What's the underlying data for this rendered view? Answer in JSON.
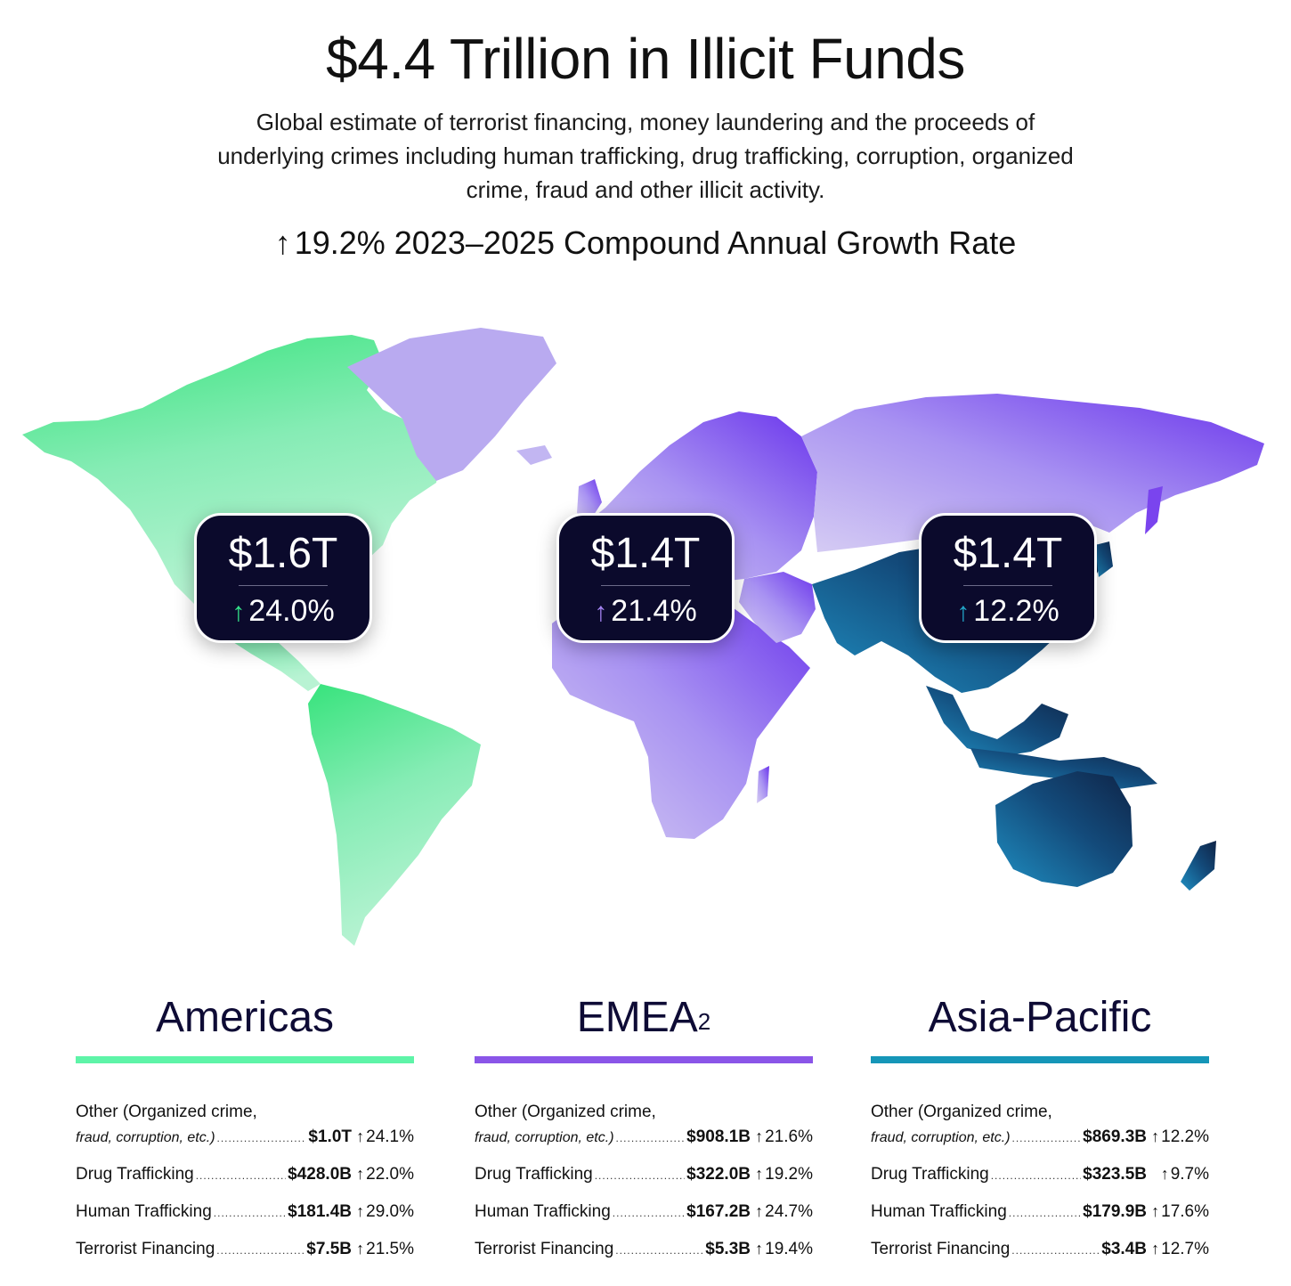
{
  "title": "$4.4 Trillion in Illicit Funds",
  "subtitle": "Global estimate of terrorist financing, money laundering and the proceeds of underlying crimes including human trafficking, drug trafficking, corruption, organized crime, fraud and other illicit activity.",
  "cagr": {
    "arrow": "↑",
    "text": "19.2% 2023–2025 Compound Annual Growth Rate"
  },
  "colors": {
    "americas": "#5ef4a8",
    "emea": "#8a55e8",
    "asia_pacific": "#1596b8",
    "bubble_bg": "#0b0a2c"
  },
  "bubbles": {
    "americas": {
      "value": "$1.6T",
      "arrow": "↑",
      "change": "24.0%",
      "arrow_color": "#34e38a"
    },
    "emea": {
      "value": "$1.4T",
      "arrow": "↑",
      "change": "21.4%",
      "arrow_color": "#a685f5"
    },
    "asia_pacific": {
      "value": "$1.4T",
      "arrow": "↑",
      "change": "12.2%",
      "arrow_color": "#22a6c9"
    }
  },
  "regions": {
    "americas": {
      "name": "Americas",
      "rows": [
        {
          "label": "Other",
          "note": "(Organized crime,",
          "label2": "fraud, corruption, etc.)",
          "amount": "$1.0T",
          "arrow": "↑",
          "pct": "24.1%"
        },
        {
          "label": "Drug Trafficking",
          "amount": "$428.0B",
          "arrow": "↑",
          "pct": "22.0%"
        },
        {
          "label": "Human Trafficking",
          "amount": "$181.4B",
          "arrow": "↑",
          "pct": "29.0%"
        },
        {
          "label": "Terrorist Financing",
          "amount": "$7.5B",
          "arrow": "↑",
          "pct": "21.5%"
        }
      ]
    },
    "emea": {
      "name": "EMEA",
      "sup": "2",
      "rows": [
        {
          "label": "Other",
          "note": "(Organized crime,",
          "label2": "fraud, corruption, etc.)",
          "amount": "$908.1B",
          "arrow": "↑",
          "pct": "21.6%"
        },
        {
          "label": "Drug Trafficking",
          "amount": "$322.0B",
          "arrow": "↑",
          "pct": "19.2%"
        },
        {
          "label": "Human Trafficking",
          "amount": "$167.2B",
          "arrow": "↑",
          "pct": "24.7%"
        },
        {
          "label": "Terrorist Financing",
          "amount": "$5.3B",
          "arrow": "↑",
          "pct": "19.4%"
        }
      ]
    },
    "asia_pacific": {
      "name": "Asia-Pacific",
      "rows": [
        {
          "label": "Other",
          "note": "(Organized crime,",
          "label2": "fraud, corruption, etc.)",
          "amount": "$869.3B",
          "arrow": "↑",
          "pct": "12.2%"
        },
        {
          "label": "Drug Trafficking",
          "amount": "$323.5B",
          "arrow": "↑",
          "pct": "9.7%"
        },
        {
          "label": "Human Trafficking",
          "amount": "$179.9B",
          "arrow": "↑",
          "pct": "17.6%"
        },
        {
          "label": "Terrorist Financing",
          "amount": "$3.4B",
          "arrow": "↑",
          "pct": "12.7%"
        }
      ]
    }
  }
}
